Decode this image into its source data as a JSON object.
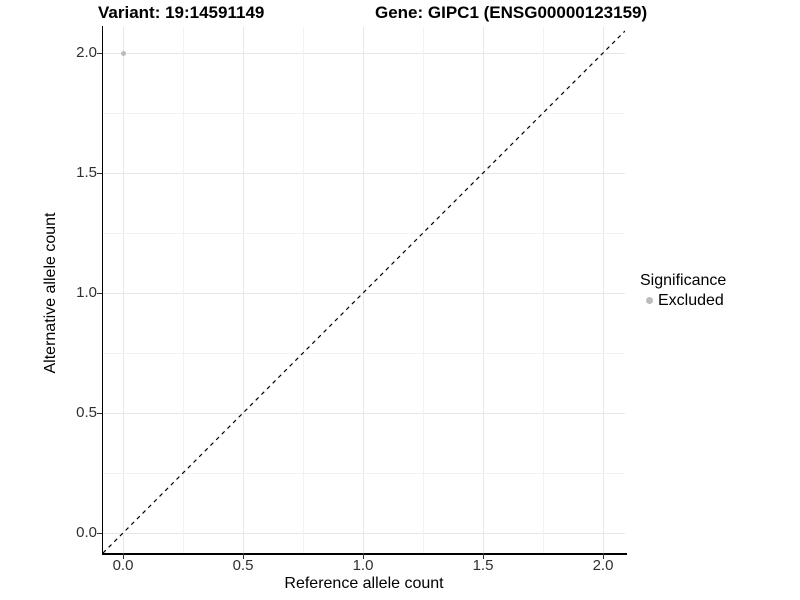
{
  "titles": {
    "variant": "Variant: 19:14591149",
    "gene": "Gene: GIPC1 (ENSG00000123159)"
  },
  "x_axis": {
    "label": "Reference allele count",
    "ticks": [
      "0.0",
      "0.5",
      "1.0",
      "1.5",
      "2.0"
    ]
  },
  "y_axis": {
    "label": "Alternative allele count",
    "ticks": [
      "2.0",
      "1.5",
      "1.0",
      "0.5",
      "0.0"
    ]
  },
  "legend": {
    "title": "Significance",
    "items": [
      {
        "label": "Excluded",
        "color": "#bcbcbc"
      }
    ]
  },
  "colors": {
    "point": "#bcbcbc",
    "grid_major": "#e7e7e7",
    "grid_minor": "#f2f2f2",
    "axis_line": "#000000",
    "reference_line": "#000000",
    "background": "#ffffff"
  },
  "chart_data": {
    "type": "scatter",
    "title": "Variant: 19:14591149   Gene: GIPC1 (ENSG00000123159)",
    "xlabel": "Reference allele count",
    "ylabel": "Alternative allele count",
    "xlim": [
      -0.08,
      2.09
    ],
    "ylim": [
      -0.08,
      2.1
    ],
    "x_ticks": [
      0.0,
      0.5,
      1.0,
      1.5,
      2.0
    ],
    "y_ticks": [
      0.0,
      0.5,
      1.0,
      1.5,
      2.0
    ],
    "grid": true,
    "legend_position": "right",
    "series": [
      {
        "name": "Excluded",
        "color": "#bcbcbc",
        "points": [
          [
            0,
            2
          ]
        ]
      }
    ],
    "reference_line": {
      "type": "identity",
      "equation": "y = x",
      "style": "dashed",
      "color": "#000000"
    }
  }
}
